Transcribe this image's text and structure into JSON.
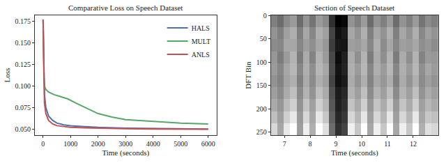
{
  "chart_data": [
    {
      "type": "line",
      "title": "Comparative Loss on Speech Dataset",
      "x_label": "Time (seconds)",
      "y_label": "Loss",
      "xlim": [
        -300,
        6300
      ],
      "xticks": [
        0,
        1000,
        2000,
        3000,
        4000,
        5000,
        6000
      ],
      "ylim": [
        0.043,
        0.182
      ],
      "yticks": [
        {
          "value": 0.05,
          "label": "0.050"
        },
        {
          "value": 0.075,
          "label": "0.075"
        },
        {
          "value": 0.1,
          "label": "0.100"
        },
        {
          "value": 0.125,
          "label": "0.125"
        },
        {
          "value": 0.15,
          "label": "0.150"
        },
        {
          "value": 0.175,
          "label": "0.175"
        }
      ],
      "grid": false,
      "legend": "upper right",
      "series": [
        {
          "name": "HALS",
          "color": "#4c72b0",
          "x": [
            0,
            50,
            100,
            200,
            350,
            500,
            750,
            1000,
            1500,
            2000,
            3000,
            4000,
            5000,
            6000
          ],
          "values": [
            0.177,
            0.09,
            0.075,
            0.065,
            0.06,
            0.057,
            0.055,
            0.054,
            0.053,
            0.052,
            0.051,
            0.0505,
            0.0502,
            0.05
          ]
        },
        {
          "name": "MULT",
          "color": "#55a868",
          "x": [
            0,
            30,
            60,
            100,
            200,
            400,
            600,
            900,
            1200,
            1600,
            2000,
            2500,
            3000,
            4000,
            5000,
            6000
          ],
          "values": [
            0.177,
            0.11,
            0.099,
            0.096,
            0.093,
            0.09,
            0.088,
            0.085,
            0.08,
            0.074,
            0.068,
            0.064,
            0.061,
            0.059,
            0.057,
            0.056
          ]
        },
        {
          "name": "ANLS",
          "color": "#c44e52",
          "x": [
            0,
            50,
            100,
            200,
            350,
            500,
            750,
            1000,
            1500,
            2000,
            3000,
            4000,
            5000,
            6000
          ],
          "values": [
            0.177,
            0.08,
            0.068,
            0.06,
            0.056,
            0.054,
            0.053,
            0.052,
            0.0515,
            0.051,
            0.0505,
            0.05,
            0.0499,
            0.0498
          ]
        }
      ]
    },
    {
      "type": "heatmap",
      "title": "Section of Speech Dataset",
      "x_label": "Time (seconds)",
      "y_label": "DFT Bin",
      "color": "gray",
      "xlim": [
        6.475,
        12.975
      ],
      "xticks": [
        7,
        8,
        9,
        10,
        11,
        12
      ],
      "ylim": [
        256,
        0
      ],
      "yticks": [
        0,
        50,
        100,
        150,
        200,
        250
      ],
      "x": [
        6.6,
        6.85,
        7.1,
        7.35,
        7.6,
        7.85,
        8.1,
        8.35,
        8.6,
        8.85,
        9.1,
        9.35,
        9.6,
        9.85,
        10.1,
        10.35,
        10.6,
        10.85,
        11.1,
        11.35,
        11.6,
        11.85,
        12.1,
        12.35,
        12.6,
        12.85
      ],
      "y": [
        12.8,
        38.4,
        64,
        89.6,
        115.2,
        140.8,
        166.4,
        192,
        217.6,
        243.2
      ],
      "z": [
        [
          0.5,
          0.45,
          0.53,
          0.57,
          0.45,
          0.55,
          0.47,
          0.57,
          0.53,
          0.3,
          0.18,
          0.2,
          0.55,
          0.5,
          0.57,
          0.45,
          0.55,
          0.5,
          0.57,
          0.45,
          0.55,
          0.5,
          0.57,
          0.47,
          0.53,
          0.5
        ],
        [
          0.55,
          0.5,
          0.58,
          0.62,
          0.5,
          0.6,
          0.52,
          0.62,
          0.58,
          0.35,
          0.22,
          0.25,
          0.6,
          0.55,
          0.62,
          0.5,
          0.6,
          0.55,
          0.62,
          0.5,
          0.6,
          0.55,
          0.62,
          0.52,
          0.58,
          0.55
        ],
        [
          0.53,
          0.52,
          0.6,
          0.6,
          0.52,
          0.58,
          0.54,
          0.6,
          0.56,
          0.33,
          0.24,
          0.23,
          0.58,
          0.57,
          0.6,
          0.52,
          0.62,
          0.53,
          0.6,
          0.52,
          0.58,
          0.57,
          0.6,
          0.54,
          0.56,
          0.53
        ],
        [
          0.56,
          0.49,
          0.57,
          0.63,
          0.49,
          0.61,
          0.51,
          0.63,
          0.57,
          0.36,
          0.21,
          0.26,
          0.61,
          0.54,
          0.63,
          0.49,
          0.61,
          0.54,
          0.63,
          0.49,
          0.61,
          0.54,
          0.63,
          0.51,
          0.57,
          0.56
        ],
        [
          0.57,
          0.52,
          0.6,
          0.64,
          0.52,
          0.62,
          0.54,
          0.64,
          0.6,
          0.37,
          0.23,
          0.27,
          0.62,
          0.57,
          0.64,
          0.52,
          0.62,
          0.57,
          0.64,
          0.52,
          0.62,
          0.57,
          0.64,
          0.54,
          0.6,
          0.57
        ],
        [
          0.55,
          0.51,
          0.59,
          0.62,
          0.5,
          0.61,
          0.53,
          0.62,
          0.58,
          0.35,
          0.22,
          0.25,
          0.61,
          0.55,
          0.62,
          0.51,
          0.6,
          0.56,
          0.62,
          0.5,
          0.61,
          0.55,
          0.62,
          0.53,
          0.58,
          0.55
        ],
        [
          0.58,
          0.53,
          0.61,
          0.66,
          0.53,
          0.63,
          0.55,
          0.66,
          0.61,
          0.38,
          0.25,
          0.28,
          0.63,
          0.58,
          0.66,
          0.53,
          0.63,
          0.58,
          0.66,
          0.53,
          0.63,
          0.58,
          0.66,
          0.55,
          0.61,
          0.58
        ],
        [
          0.61,
          0.56,
          0.65,
          0.7,
          0.55,
          0.67,
          0.58,
          0.7,
          0.64,
          0.4,
          0.26,
          0.3,
          0.67,
          0.61,
          0.7,
          0.56,
          0.67,
          0.61,
          0.7,
          0.56,
          0.67,
          0.61,
          0.7,
          0.58,
          0.64,
          0.61
        ],
        [
          0.66,
          0.58,
          0.7,
          0.76,
          0.57,
          0.72,
          0.6,
          0.76,
          0.68,
          0.42,
          0.28,
          0.32,
          0.72,
          0.64,
          0.76,
          0.58,
          0.72,
          0.64,
          0.76,
          0.58,
          0.72,
          0.64,
          0.76,
          0.6,
          0.68,
          0.66
        ],
        [
          0.72,
          0.6,
          0.76,
          0.82,
          0.58,
          0.78,
          0.62,
          0.82,
          0.74,
          0.45,
          0.3,
          0.35,
          0.78,
          0.68,
          0.82,
          0.6,
          0.78,
          0.68,
          0.82,
          0.6,
          0.78,
          0.68,
          0.82,
          0.62,
          0.74,
          0.72
        ]
      ]
    }
  ]
}
